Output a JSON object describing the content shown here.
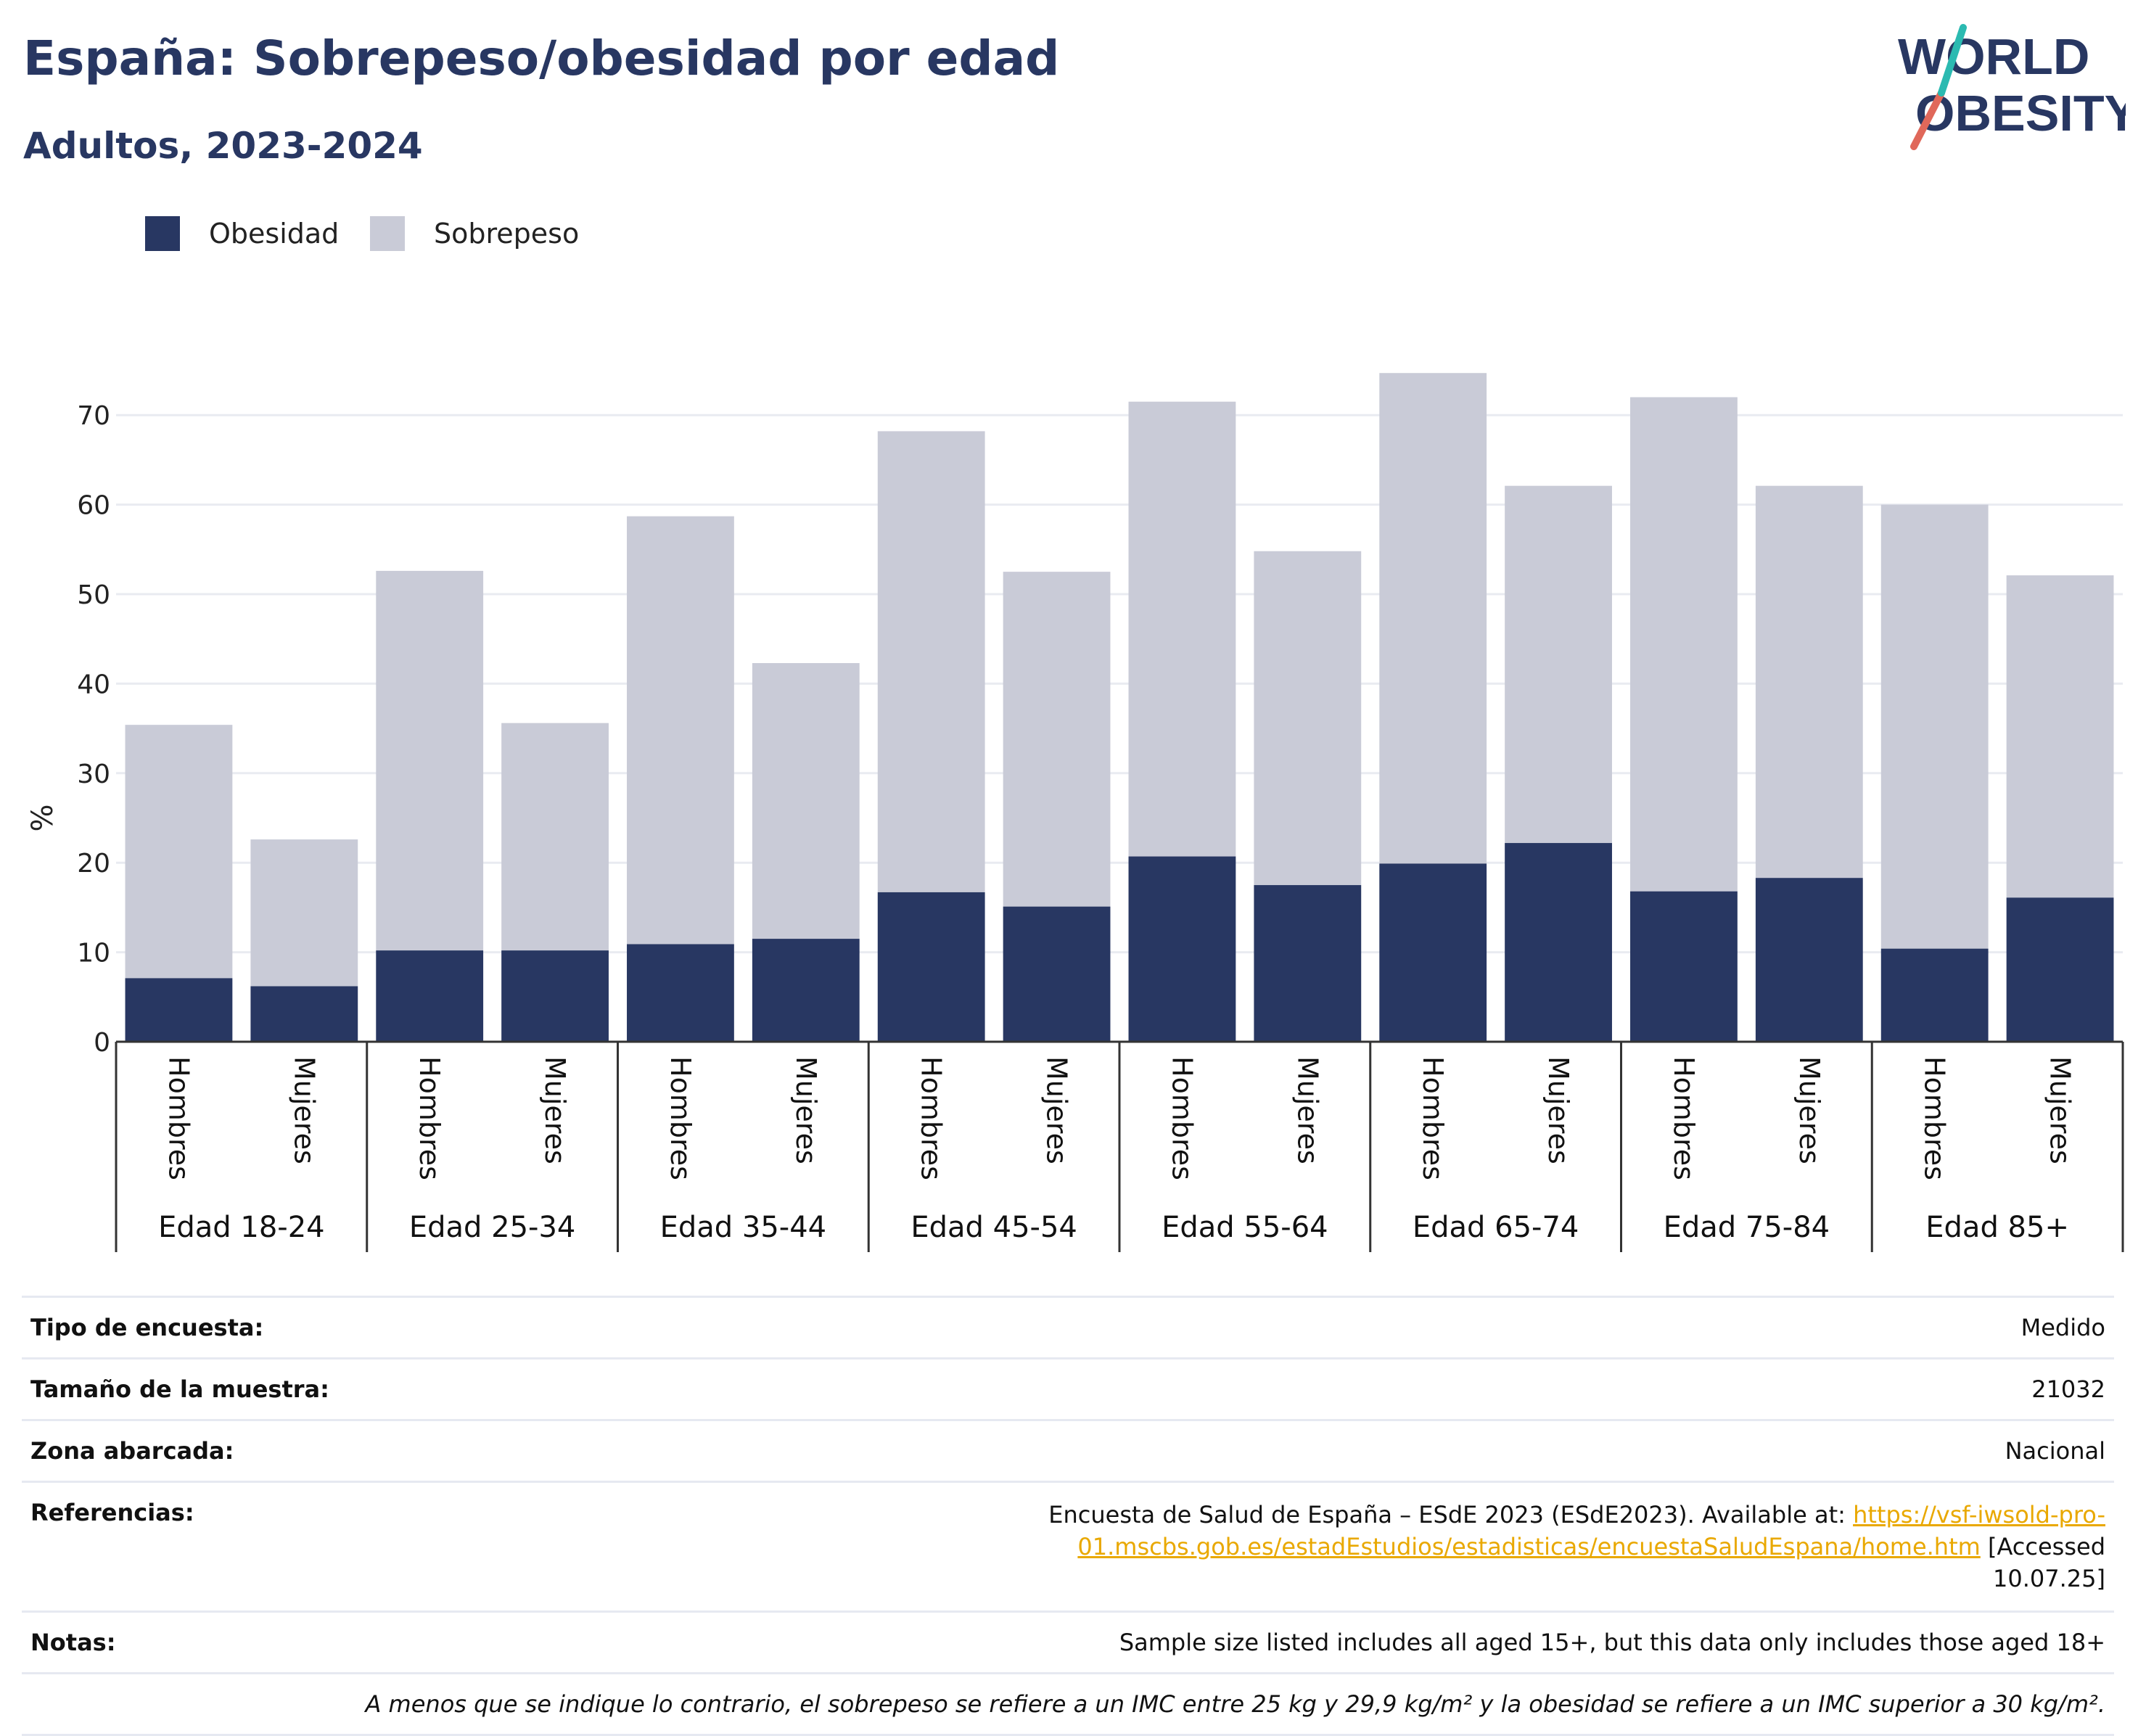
{
  "header": {
    "title": "España: Sobrepeso/obesidad por edad",
    "subtitle": "Adultos, 2023-2024"
  },
  "logo": {
    "line1": "WORLD",
    "line2": "OBESITY"
  },
  "legend": [
    {
      "label": "Obesidad",
      "color": "#283762"
    },
    {
      "label": "Sobrepeso",
      "color": "#c9cbd7"
    }
  ],
  "chart_data": {
    "type": "bar",
    "stacked": true,
    "ylabel": "%",
    "ylim": [
      0,
      76
    ],
    "yticks": [
      0,
      10,
      20,
      30,
      40,
      50,
      60,
      70
    ],
    "grid": true,
    "legend_position": "top-left",
    "groups": [
      "Edad 18-24",
      "Edad 25-34",
      "Edad 35-44",
      "Edad 45-54",
      "Edad 55-64",
      "Edad 65-74",
      "Edad 75-84",
      "Edad 85+"
    ],
    "subcategories": [
      "Hombres",
      "Mujeres"
    ],
    "series": [
      {
        "name": "Obesidad",
        "color": "#283762",
        "values": [
          7.1,
          6.2,
          10.2,
          10.2,
          10.9,
          11.5,
          16.7,
          15.1,
          20.7,
          17.5,
          19.9,
          22.2,
          16.8,
          18.3,
          10.4,
          16.1
        ]
      },
      {
        "name": "Sobrepeso",
        "color": "#c9cbd7",
        "values": [
          28.3,
          16.4,
          42.4,
          25.4,
          47.8,
          30.8,
          51.5,
          37.4,
          50.8,
          37.3,
          54.8,
          39.9,
          55.2,
          43.8,
          49.6,
          36.0
        ]
      }
    ]
  },
  "info": {
    "survey_type": {
      "label": "Tipo de encuesta:",
      "value": "Medido"
    },
    "sample_size": {
      "label": "Tamaño de la muestra:",
      "value": "21032"
    },
    "area": {
      "label": "Zona abarcada:",
      "value": "Nacional"
    },
    "references": {
      "label": "Referencias:",
      "text": "Encuesta de Salud de España – ESdE 2023 (ESdE2023). Available at:",
      "link": "https://vsf-iwsold-pro-01.mscbs.gob.es/estadEstudios/estadisticas/encuestaSaludEspana/home.htm",
      "accessed": "[Accessed 10.07.25]"
    },
    "notes": {
      "label": "Notas:",
      "value": "Sample size listed includes all aged 15+, but this data only includes those aged 18+"
    },
    "footnote": "A menos que se indique lo contrario, el sobrepeso se refiere a un IMC entre 25 kg y 29,9 kg/m² y la obesidad se refiere a un IMC superior a 30 kg/m²."
  }
}
